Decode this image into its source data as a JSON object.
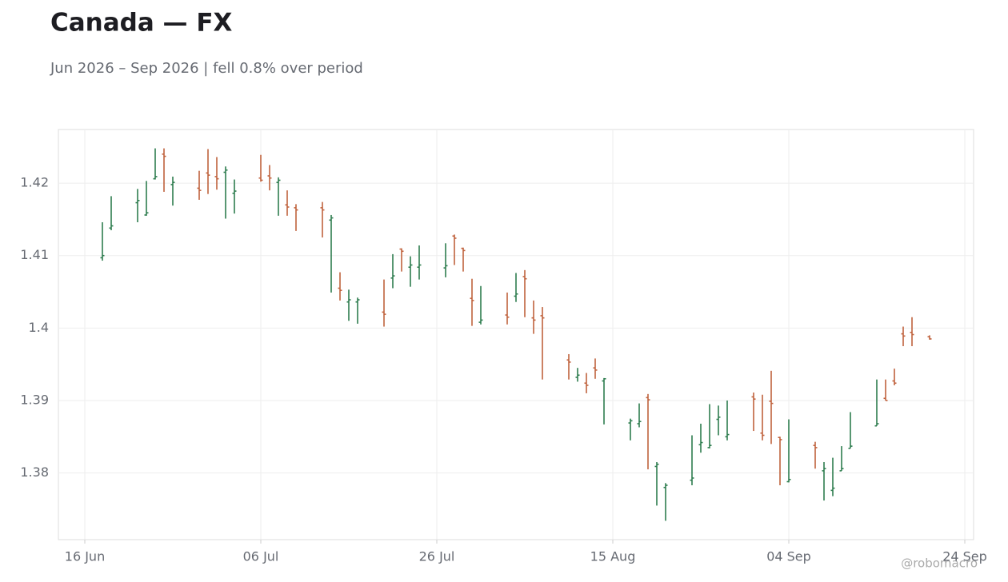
{
  "chart_data": {
    "type": "ohlc",
    "title": "Canada — FX",
    "subtitle": "Jun 2026 – Sep 2026 | fell 0.8% over period",
    "source": "@robomacro",
    "up_color": "#2e7d4f",
    "down_color": "#c0623d",
    "grid": true,
    "x": [
      "2026-06-18",
      "2026-06-19",
      "2026-06-22",
      "2026-06-23",
      "2026-06-24",
      "2026-06-25",
      "2026-06-26",
      "2026-06-29",
      "2026-06-30",
      "2026-07-01",
      "2026-07-02",
      "2026-07-03",
      "2026-07-06",
      "2026-07-07",
      "2026-07-08",
      "2026-07-09",
      "2026-07-10",
      "2026-07-13",
      "2026-07-14",
      "2026-07-15",
      "2026-07-16",
      "2026-07-17",
      "2026-07-20",
      "2026-07-21",
      "2026-07-22",
      "2026-07-23",
      "2026-07-24",
      "2026-07-27",
      "2026-07-28",
      "2026-07-29",
      "2026-07-30",
      "2026-07-31",
      "2026-08-03",
      "2026-08-04",
      "2026-08-05",
      "2026-08-06",
      "2026-08-07",
      "2026-08-10",
      "2026-08-11",
      "2026-08-12",
      "2026-08-13",
      "2026-08-14",
      "2026-08-17",
      "2026-08-18",
      "2026-08-19",
      "2026-08-20",
      "2026-08-21",
      "2026-08-24",
      "2026-08-25",
      "2026-08-26",
      "2026-08-27",
      "2026-08-28",
      "2026-08-31",
      "2026-09-01",
      "2026-09-02",
      "2026-09-03",
      "2026-09-04",
      "2026-09-07",
      "2026-09-08",
      "2026-09-09",
      "2026-09-10",
      "2026-09-11",
      "2026-09-14",
      "2026-09-15",
      "2026-09-16",
      "2026-09-17",
      "2026-09-18",
      "2026-09-20"
    ],
    "open": [
      1.4097,
      1.4138,
      1.4173,
      1.4156,
      1.4206,
      1.424,
      1.4198,
      1.4193,
      1.4214,
      1.4209,
      1.4215,
      1.4186,
      1.4207,
      1.421,
      1.4201,
      1.417,
      1.4166,
      1.4166,
      1.4149,
      1.4055,
      1.4036,
      1.4036,
      1.4022,
      1.4069,
      1.4109,
      1.4084,
      1.4084,
      1.4083,
      1.4127,
      1.411,
      1.4041,
      1.4008,
      1.4018,
      1.4044,
      1.4071,
      1.4014,
      1.4017,
      1.3956,
      1.3932,
      1.3924,
      1.3945,
      1.3927,
      1.3869,
      1.3868,
      1.3904,
      1.3809,
      1.378,
      1.379,
      1.3839,
      1.3835,
      1.3874,
      1.385,
      1.3905,
      1.3855,
      1.3899,
      1.3849,
      1.3788,
      1.3838,
      1.3803,
      1.3776,
      1.3803,
      1.3834,
      1.3865,
      1.3903,
      1.3927,
      1.3992,
      1.3994,
      1.3988
    ],
    "high": [
      1.4146,
      1.4182,
      1.4192,
      1.4203,
      1.4248,
      1.4248,
      1.4209,
      1.4217,
      1.4247,
      1.4236,
      1.4223,
      1.4205,
      1.4239,
      1.4225,
      1.4208,
      1.419,
      1.4171,
      1.4174,
      1.4156,
      1.4077,
      1.4053,
      1.4042,
      1.4067,
      1.4102,
      1.411,
      1.4099,
      1.4114,
      1.4117,
      1.4129,
      1.4111,
      1.4068,
      1.4058,
      1.4049,
      1.4076,
      1.408,
      1.4038,
      1.4029,
      1.3964,
      1.3945,
      1.3938,
      1.3958,
      1.3931,
      1.3875,
      1.3896,
      1.3909,
      1.3815,
      1.3786,
      1.3852,
      1.3868,
      1.3895,
      1.3893,
      1.39,
      1.3911,
      1.3908,
      1.3941,
      1.385,
      1.3874,
      1.3843,
      1.3815,
      1.3821,
      1.3837,
      1.3884,
      1.3929,
      1.3929,
      1.3944,
      1.4002,
      1.4015,
      1.399
    ],
    "low": [
      1.4093,
      1.4135,
      1.4146,
      1.4155,
      1.4205,
      1.4188,
      1.4169,
      1.4177,
      1.4185,
      1.4191,
      1.4151,
      1.4158,
      1.4202,
      1.419,
      1.4155,
      1.4155,
      1.4134,
      1.4125,
      1.4049,
      1.4038,
      1.401,
      1.4006,
      1.4002,
      1.4055,
      1.4078,
      1.4057,
      1.4067,
      1.407,
      1.4087,
      1.4078,
      1.4003,
      1.4005,
      1.4005,
      1.4036,
      1.4015,
      1.3992,
      1.3929,
      1.3929,
      1.3926,
      1.391,
      1.393,
      1.3867,
      1.3845,
      1.3863,
      1.3805,
      1.3755,
      1.3734,
      1.3783,
      1.3828,
      1.3834,
      1.3852,
      1.3845,
      1.3858,
      1.3845,
      1.384,
      1.3783,
      1.3787,
      1.3806,
      1.3762,
      1.3768,
      1.3803,
      1.3834,
      1.3865,
      1.39,
      1.3921,
      1.3975,
      1.3975,
      1.3984
    ],
    "close": [
      1.41,
      1.4141,
      1.4176,
      1.4159,
      1.4209,
      1.4237,
      1.4201,
      1.419,
      1.4211,
      1.4206,
      1.4218,
      1.4189,
      1.4204,
      1.4207,
      1.4204,
      1.4167,
      1.4163,
      1.4163,
      1.4152,
      1.4052,
      1.4039,
      1.4039,
      1.4019,
      1.4072,
      1.4106,
      1.4087,
      1.4087,
      1.4086,
      1.4124,
      1.4107,
      1.4038,
      1.4011,
      1.4015,
      1.4047,
      1.4068,
      1.4011,
      1.4014,
      1.3953,
      1.3935,
      1.3921,
      1.3942,
      1.393,
      1.3872,
      1.3871,
      1.3901,
      1.3812,
      1.3783,
      1.3793,
      1.3842,
      1.3838,
      1.3877,
      1.3853,
      1.3902,
      1.3852,
      1.3896,
      1.3846,
      1.3791,
      1.3835,
      1.3806,
      1.3779,
      1.3806,
      1.3837,
      1.3868,
      1.39,
      1.3924,
      1.3989,
      1.3991,
      1.3985
    ],
    "xlim": [
      "2026-06-13",
      "2026-09-25"
    ],
    "xticks": [
      {
        "value": "2026-06-16",
        "label": "16 Jun"
      },
      {
        "value": "2026-07-06",
        "label": "06 Jul"
      },
      {
        "value": "2026-07-26",
        "label": "26 Jul"
      },
      {
        "value": "2026-08-15",
        "label": "15 Aug"
      },
      {
        "value": "2026-09-04",
        "label": "04 Sep"
      },
      {
        "value": "2026-09-24",
        "label": "24 Sep"
      }
    ],
    "ylim": [
      1.3708,
      1.4274
    ],
    "yticks": [
      1.38,
      1.39,
      1.4,
      1.41,
      1.42
    ]
  }
}
